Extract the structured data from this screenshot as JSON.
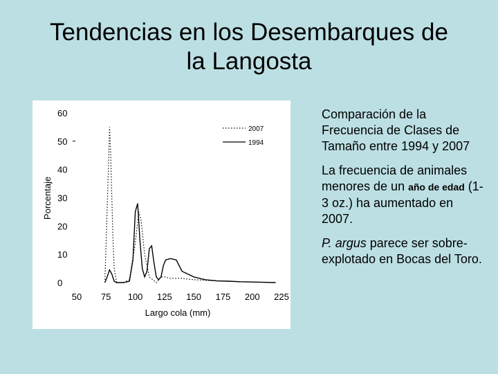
{
  "slide": {
    "title_line1": "Tendencias en los Desembarques de",
    "title_line2": "la Langosta"
  },
  "text": {
    "para1": "Comparación de la Frecuencia de Clases de Tamaño entre 1994 y 2007",
    "para2_part1": "La frecuencia de animales menores de un",
    "para2_bold": "año de edad",
    "para2_part2": "(1-3 oz.) ha aumentado en 2007.",
    "para3_italic": "P. argus",
    "para3_rest": "parece ser sobre-explotado en Bocas del Toro."
  },
  "chart_data": {
    "type": "line",
    "title": "",
    "xlabel": "Largo cola (mm)",
    "ylabel": "Porcentaje",
    "xlim": [
      50,
      225
    ],
    "ylim": [
      0,
      60
    ],
    "x_ticks": [
      "50",
      "75",
      "100",
      "125",
      "150",
      "175",
      "200",
      "225"
    ],
    "y_ticks": [
      "0",
      "10",
      "20",
      "30",
      "40",
      "50",
      "60"
    ],
    "legend_position": "top-right",
    "series": [
      {
        "name": "2007",
        "style": "dotted",
        "x": [
          74,
          77,
          78,
          79,
          80,
          81,
          82,
          84,
          86,
          90,
          95,
          100,
          103,
          105,
          108,
          112,
          118,
          122,
          125,
          130,
          140,
          150,
          160,
          175,
          190,
          200,
          210,
          220
        ],
        "y": [
          0,
          40,
          55,
          45,
          30,
          15,
          5,
          0,
          0,
          0,
          1,
          14,
          25,
          22,
          10,
          2,
          0,
          2,
          2,
          1.5,
          1.5,
          1,
          0.8,
          0.5,
          0.3,
          0.2,
          0.1,
          0
        ],
        "color": "#000000"
      },
      {
        "name": "1994",
        "style": "solid",
        "x": [
          74,
          76,
          78,
          80,
          82,
          84,
          86,
          90,
          95,
          98,
          100,
          102,
          104,
          106,
          108,
          110,
          112,
          114,
          116,
          118,
          120,
          122,
          124,
          126,
          130,
          135,
          140,
          145,
          150,
          155,
          160,
          165,
          170,
          180,
          190,
          200,
          210,
          220
        ],
        "y": [
          0,
          2,
          4.5,
          3,
          0.5,
          0,
          0,
          0,
          0.5,
          8,
          25,
          28,
          15,
          5,
          2,
          4,
          12,
          13,
          7,
          2,
          1,
          2,
          6,
          8,
          8.5,
          8,
          4,
          3,
          2,
          1.5,
          1,
          0.8,
          0.6,
          0.5,
          0.3,
          0.2,
          0.1,
          0
        ],
        "color": "#000000"
      }
    ]
  }
}
